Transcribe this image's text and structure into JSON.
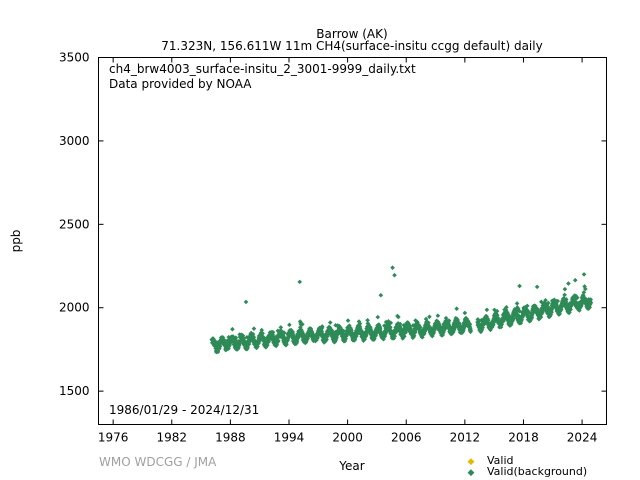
{
  "chart_data": {
    "type": "scatter",
    "title": "Barrow (AK)",
    "subtitle": "71.323N, 156.611W 11m    CH4(surface-insitu ccgg default) daily",
    "annotation_file": "ch4_brw4003_surface-insitu_2_3001-9999_daily.txt",
    "annotation_provider": "Data provided by NOAA",
    "date_range": "1986/01/29 - 2024/12/31",
    "xlabel": "Year",
    "ylabel": "ppb",
    "xlim": [
      1974.5,
      2026.5
    ],
    "ylim": [
      1300,
      3500
    ],
    "x_ticks": [
      "1976",
      "1982",
      "1988",
      "1994",
      "2000",
      "2006",
      "2012",
      "2018",
      "2024"
    ],
    "y_ticks": [
      "1500",
      "2000",
      "2500",
      "3000",
      "3500"
    ],
    "grid": false,
    "legend_position": "bottom-right",
    "series": [
      {
        "name": "Valid",
        "color": "#e6b800",
        "points": []
      },
      {
        "name": "Valid(background)",
        "color": "#2e8b57",
        "trend": [
          [
            1986.1,
            1775
          ],
          [
            1990,
            1800
          ],
          [
            1995,
            1830
          ],
          [
            2000,
            1845
          ],
          [
            2005,
            1860
          ],
          [
            2010,
            1880
          ],
          [
            2014,
            1905
          ],
          [
            2018,
            1955
          ],
          [
            2022,
            2010
          ],
          [
            2024.9,
            2040
          ]
        ],
        "outliers": [
          [
            1989.6,
            2035
          ],
          [
            1995.1,
            2155
          ],
          [
            2003.4,
            2075
          ],
          [
            2004.6,
            2240
          ],
          [
            2004.8,
            2195
          ],
          [
            2017.6,
            2130
          ],
          [
            2019.4,
            2125
          ],
          [
            2022.6,
            2145
          ],
          [
            2023.3,
            2165
          ],
          [
            2024.2,
            2200
          ]
        ]
      }
    ]
  },
  "credit": "WMO WDCGG / JMA"
}
